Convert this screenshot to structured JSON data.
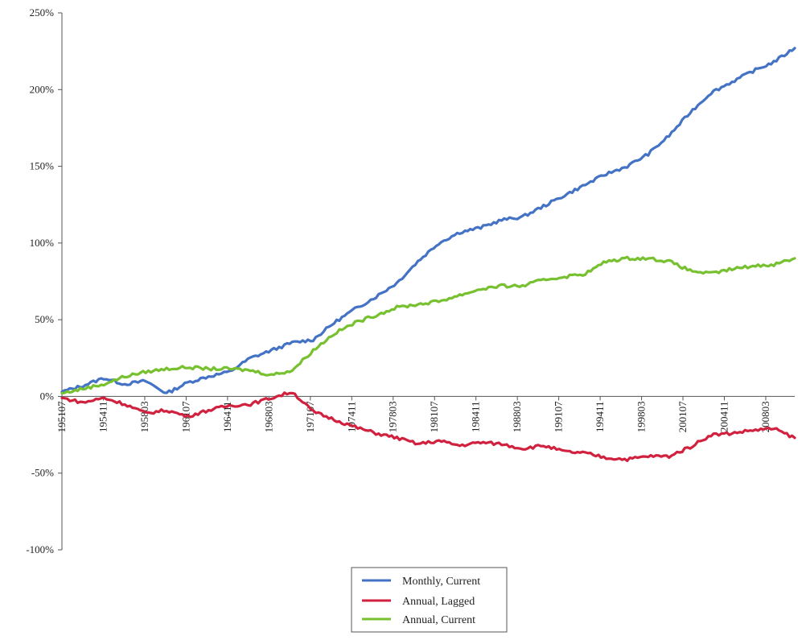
{
  "chart_data": {
    "type": "line",
    "title": "",
    "xlabel": "",
    "ylabel": "",
    "ylim": [
      -1.0,
      2.5
    ],
    "y_ticks": [
      -1.0,
      -0.5,
      0,
      0.5,
      1.0,
      1.5,
      2.0,
      2.5
    ],
    "y_tick_labels": [
      "-100%",
      "-50%",
      "0%",
      "50%",
      "100%",
      "150%",
      "200%",
      "250%"
    ],
    "x_tick_labels": [
      "195107",
      "195411",
      "195803",
      "196107",
      "196411",
      "196803",
      "197107",
      "197411",
      "197803",
      "198107",
      "198411",
      "198803",
      "199107",
      "199411",
      "199803",
      "200107",
      "200411",
      "200803"
    ],
    "x": [
      "195107",
      "195303",
      "195411",
      "195607",
      "195803",
      "195909",
      "196107",
      "196209",
      "196411",
      "196607",
      "196803",
      "196909",
      "197107",
      "197303",
      "197411",
      "197607",
      "197803",
      "197909",
      "198107",
      "198303",
      "198411",
      "198607",
      "198803",
      "198909",
      "199107",
      "199303",
      "199411",
      "199607",
      "199803",
      "199909",
      "200107",
      "200303",
      "200411",
      "200607",
      "200803",
      "200911"
    ],
    "grid": false,
    "legend_position": "bottom-center",
    "series": [
      {
        "name": "Monthly, Current",
        "color": "#4472c4",
        "values": [
          0.03,
          0.07,
          0.12,
          0.08,
          0.1,
          0.02,
          0.09,
          0.13,
          0.16,
          0.25,
          0.3,
          0.35,
          0.37,
          0.48,
          0.57,
          0.65,
          0.74,
          0.88,
          1.0,
          1.07,
          1.1,
          1.15,
          1.17,
          1.24,
          1.31,
          1.38,
          1.45,
          1.5,
          1.58,
          1.7,
          1.85,
          1.98,
          2.05,
          2.12,
          2.18,
          2.27
        ]
      },
      {
        "name": "Annual, Lagged",
        "color": "#d0213f",
        "values": [
          -0.01,
          -0.04,
          -0.01,
          -0.05,
          -0.11,
          -0.09,
          -0.13,
          -0.09,
          -0.06,
          -0.05,
          -0.01,
          0.03,
          -0.1,
          -0.15,
          -0.2,
          -0.24,
          -0.27,
          -0.31,
          -0.29,
          -0.32,
          -0.3,
          -0.31,
          -0.34,
          -0.32,
          -0.36,
          -0.37,
          -0.4,
          -0.41,
          -0.39,
          -0.39,
          -0.33,
          -0.25,
          -0.24,
          -0.22,
          -0.21,
          -0.27
        ]
      },
      {
        "name": "Annual, Current",
        "color": "#77c131",
        "values": [
          0.02,
          0.05,
          0.08,
          0.13,
          0.16,
          0.18,
          0.19,
          0.18,
          0.18,
          0.17,
          0.14,
          0.17,
          0.3,
          0.41,
          0.48,
          0.53,
          0.58,
          0.6,
          0.62,
          0.66,
          0.7,
          0.72,
          0.72,
          0.76,
          0.78,
          0.8,
          0.88,
          0.9,
          0.9,
          0.88,
          0.82,
          0.8,
          0.83,
          0.85,
          0.86,
          0.9
        ]
      }
    ]
  }
}
